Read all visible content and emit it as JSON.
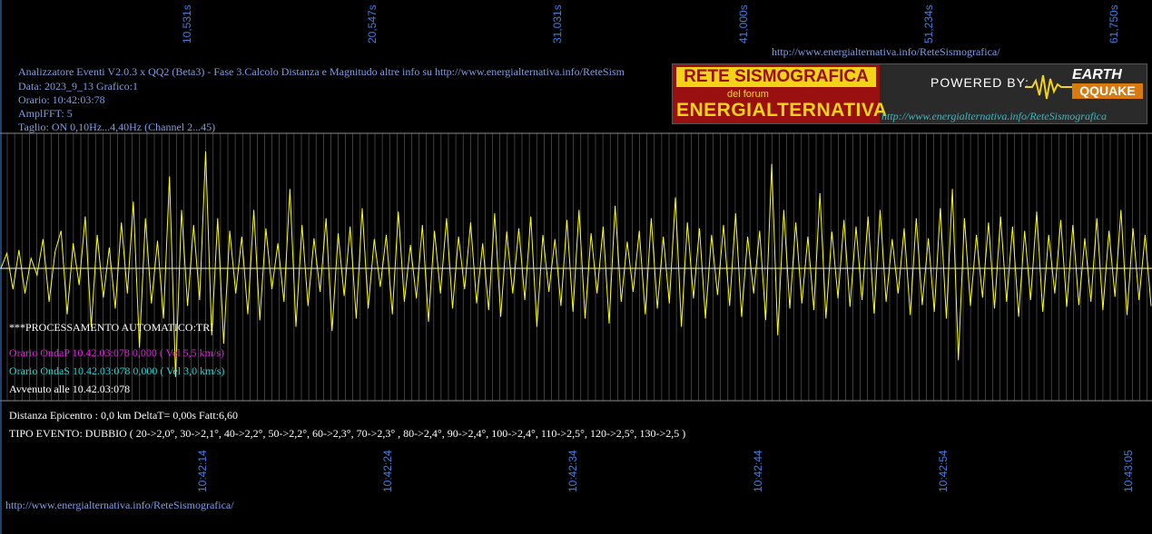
{
  "header": {
    "top_url": "http://www.energialternativa.info/ReteSismografica/",
    "info_lines": [
      "Analizzatore Eventi V2.0.3 x QQ2 (Beta3) - Fase 3.Calcolo Distanza e Magnitudo altre info su http://www.energialternativa.info/ReteSism",
      "Data: 2023_9_13 Grafico:1",
      "Orario: 10:42:03:78",
      "AmplFFT: 5",
      "Taglio: ON 0,10Hz...4,40Hz      (Channel 2...45)"
    ]
  },
  "banner": {
    "title1": "RETE SISMOGRAFICA",
    "title2": "del forum",
    "title3": "ENERGIALTERNATIVA",
    "powered": "POWERED BY:",
    "logo_top": "EARTH",
    "logo_bottom": "QQUAKE",
    "url": "http://www.energialternativa.info/ReteSismografica"
  },
  "processing": {
    "auto": "***PROCESSAMENTO AUTOMATICO:TRI",
    "onda_p": "Orario OndaP 10.42.03:078  0,000 ( Vel 5,5 km/s)",
    "onda_s": "Orario OndaS 10.42.03:078  0,000 ( Vel 3,0 km/s)",
    "avvenuto": "Avvenuto alle 10.42.03:078",
    "distanza": "Distanza Epicentro : 0,0 km DeltaT= 0,00s  Fatt:6,60",
    "tipo": "TIPO EVENTO: DUBBIO ( 20->2,0°, 30->2,1°, 40->2,2°, 50->2,2°, 60->2,3°, 70->2,3° , 80->2,4°, 90->2,4°, 100->2,4°, 110->2,5°, 120->2,5°, 130->2,5 )"
  },
  "footer": {
    "url": "http://www.energialternativa.info/ReteSismografica/"
  },
  "colors": {
    "trace": "#ffff00",
    "grid": "#8a8a8a",
    "label": "#3f7fe0",
    "onda_p": "#e020e0",
    "onda_s": "#20d8d8",
    "white": "#ffffff"
  },
  "chart_data": {
    "type": "line",
    "top_tick_labels": [
      "10,531s",
      "20,547s",
      "31,031s",
      "41,000s",
      "51,234s",
      "61,750s"
    ],
    "bottom_tick_labels": [
      "10:42:14",
      "10:42:24",
      "10:42:34",
      "10:42:44",
      "10:42:54",
      "10:43:05"
    ],
    "grid": true,
    "series": [
      {
        "values": [
          0,
          18,
          -25,
          22,
          -30,
          12,
          -8,
          35,
          -40,
          20,
          45,
          -55,
          30,
          -20,
          62,
          -70,
          40,
          -35,
          25,
          -48,
          55,
          -30,
          80,
          -95,
          60,
          -42,
          33,
          -60,
          110,
          -130,
          70,
          -45,
          52,
          -38,
          140,
          -80,
          60,
          -90,
          45,
          -30,
          38,
          -55,
          70,
          -62,
          48,
          -25,
          30,
          -40,
          95,
          -70,
          52,
          -45,
          36,
          -28,
          60,
          -75,
          42,
          -33,
          50,
          -60,
          72,
          -48,
          35,
          -22,
          40,
          -55,
          68,
          -40,
          28,
          -36,
          52,
          -64,
          45,
          -30,
          60,
          -48,
          38,
          -25,
          55,
          -42,
          30,
          -50,
          66,
          -58,
          44,
          -30,
          48,
          -38,
          62,
          -70,
          40,
          -28,
          35,
          -45,
          58,
          -52,
          70,
          -60,
          42,
          -30,
          50,
          -66,
          75,
          -40,
          32,
          -28,
          45,
          -55,
          60,
          -48,
          38,
          -42,
          85,
          -70,
          55,
          -36,
          48,
          -60,
          40,
          -32,
          52,
          -45,
          66,
          -58,
          38,
          -30,
          45,
          -62,
          125,
          -80,
          70,
          -48,
          55,
          -42,
          38,
          -50,
          90,
          -60,
          44,
          -36,
          58,
          -46,
          50,
          -38,
          62,
          -54,
          70,
          -40,
          35,
          -30,
          48,
          -56,
          60,
          -44,
          36,
          -52,
          72,
          -60,
          95,
          -110,
          60,
          -45,
          40,
          -35,
          55,
          -48,
          62,
          -40,
          50,
          -58,
          45,
          -38,
          68,
          -52,
          40,
          -30,
          58,
          -46,
          52,
          -44,
          36,
          -40,
          60,
          -50,
          45,
          -34,
          70,
          -56,
          48,
          -38,
          40,
          -45
        ],
        "ylim": [
          -160,
          160
        ]
      }
    ]
  }
}
